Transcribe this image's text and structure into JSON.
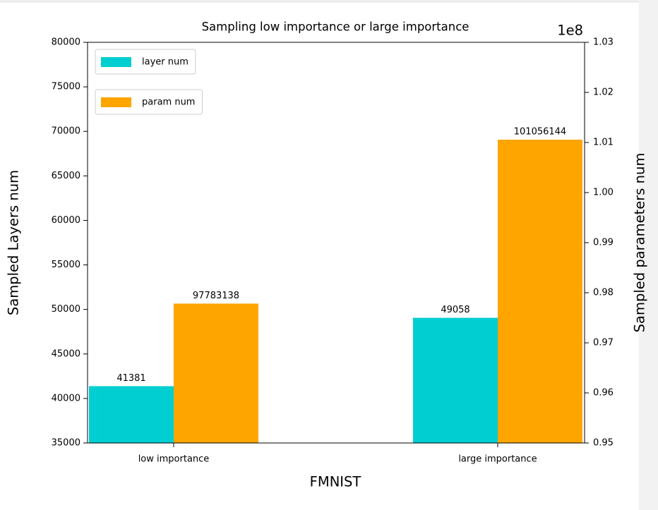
{
  "chart_data": {
    "type": "bar",
    "title": "Sampling low importance or large importance",
    "x_label": "FMNIST",
    "y_label": "Sampled Layers num",
    "y2_label": "Sampled parameters num",
    "y2_offset_label": "1e8",
    "categories": [
      "low importance",
      "large importance"
    ],
    "series": [
      {
        "name": "layer num",
        "color": "#00ced1",
        "values": [
          41381,
          49058
        ]
      },
      {
        "name": "param num",
        "color": "#ffa500",
        "axis": "y2",
        "values": [
          97783138,
          101056144
        ]
      }
    ],
    "ylim": [
      35000,
      80000
    ],
    "yticks": [
      35000,
      40000,
      45000,
      50000,
      55000,
      60000,
      65000,
      70000,
      75000,
      80000
    ],
    "y2lim": [
      95000000,
      103000000
    ],
    "y2ticks": [
      {
        "value": 95000000,
        "label": "0.95"
      },
      {
        "value": 96000000,
        "label": "0.96"
      },
      {
        "value": 97000000,
        "label": "0.97"
      },
      {
        "value": 98000000,
        "label": "0.98"
      },
      {
        "value": 99000000,
        "label": "0.99"
      },
      {
        "value": 100000000,
        "label": "1.00"
      },
      {
        "value": 101000000,
        "label": "1.01"
      },
      {
        "value": 102000000,
        "label": "1.02"
      },
      {
        "value": 103000000,
        "label": "1.03"
      }
    ],
    "legend": "upper left"
  }
}
